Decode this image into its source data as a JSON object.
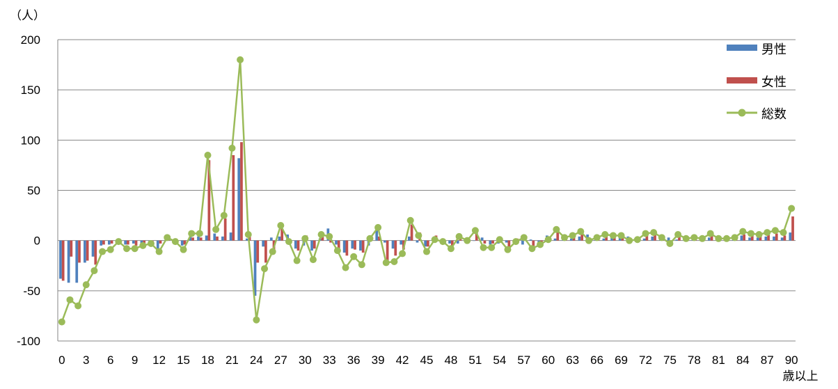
{
  "chart_data": {
    "type": "bar",
    "title": "",
    "xlabel": "歳以上",
    "ylabel": "（人）",
    "ylim": [
      -100,
      200
    ],
    "yticks": [
      -100,
      -50,
      0,
      50,
      100,
      150,
      200
    ],
    "x": [
      0,
      1,
      2,
      3,
      4,
      5,
      6,
      7,
      8,
      9,
      10,
      11,
      12,
      13,
      14,
      15,
      16,
      17,
      18,
      19,
      20,
      21,
      22,
      23,
      24,
      25,
      26,
      27,
      28,
      29,
      30,
      31,
      32,
      33,
      34,
      35,
      36,
      37,
      38,
      39,
      40,
      41,
      42,
      43,
      44,
      45,
      46,
      47,
      48,
      49,
      50,
      51,
      52,
      53,
      54,
      55,
      56,
      57,
      58,
      59,
      60,
      61,
      62,
      63,
      64,
      65,
      66,
      67,
      68,
      69,
      70,
      71,
      72,
      73,
      74,
      75,
      76,
      77,
      78,
      79,
      80,
      81,
      82,
      83,
      84,
      85,
      86,
      87,
      88,
      89,
      90
    ],
    "xtick_labels": [
      "0",
      "3",
      "6",
      "9",
      "12",
      "15",
      "18",
      "21",
      "24",
      "27",
      "30",
      "33",
      "36",
      "39",
      "42",
      "45",
      "48",
      "51",
      "54",
      "57",
      "60",
      "63",
      "66",
      "69",
      "72",
      "75",
      "78",
      "81",
      "84",
      "87",
      "90"
    ],
    "grid": true,
    "legend_position": "top-right",
    "colors": {
      "male": "#4f81bd",
      "female": "#c0504d",
      "total": "#9bbb59",
      "grid": "#868686"
    },
    "series": [
      {
        "name": "男性",
        "type": "bar",
        "values": [
          -38,
          -42,
          -42,
          -22,
          -16,
          -5,
          -4,
          0,
          -4,
          -3,
          -3,
          -1,
          -8,
          1,
          -3,
          -5,
          4,
          4,
          5,
          7,
          4,
          8,
          82,
          2,
          -55,
          -6,
          3,
          4,
          6,
          -8,
          -5,
          -10,
          2,
          12,
          -4,
          -12,
          -8,
          -10,
          -5,
          10,
          -2,
          -8,
          -4,
          4,
          -2,
          -6,
          2,
          0,
          -3,
          -3,
          2,
          0,
          3,
          -4,
          -3,
          -2,
          -3,
          -4,
          1,
          -4,
          5,
          2,
          5,
          2,
          4,
          6,
          1,
          2,
          4,
          3,
          4,
          1,
          2,
          4,
          5,
          3,
          1,
          3,
          2,
          2,
          3,
          4,
          3,
          2,
          5,
          3,
          3,
          4,
          4,
          3,
          8
        ]
      },
      {
        "name": "女性",
        "type": "bar",
        "values": [
          -40,
          -16,
          -22,
          -20,
          -24,
          -4,
          -3,
          -2,
          -4,
          -5,
          -3,
          -1,
          -3,
          2,
          -1,
          -4,
          3,
          3,
          80,
          4,
          22,
          85,
          98,
          6,
          -22,
          -22,
          -12,
          12,
          -3,
          -10,
          5,
          -8,
          4,
          -2,
          -8,
          -15,
          -9,
          -12,
          5,
          4,
          -20,
          -15,
          -9,
          16,
          8,
          -6,
          5,
          -3,
          -5,
          5,
          2,
          12,
          -3,
          -3,
          3,
          -7,
          2,
          5,
          -8,
          -4,
          2,
          9,
          3,
          5,
          8,
          -2,
          3,
          6,
          4,
          3,
          1,
          2,
          6,
          6,
          3,
          -2,
          6,
          2,
          3,
          2,
          5,
          2,
          2,
          3,
          6,
          5,
          5,
          6,
          7,
          5,
          24
        ]
      },
      {
        "name": "総数",
        "type": "line",
        "values": [
          -81,
          -59,
          -65,
          -44,
          -30,
          -11,
          -9,
          -1,
          -8,
          -8,
          -5,
          -3,
          -11,
          3,
          -1,
          -9,
          7,
          7,
          85,
          11,
          25,
          92,
          180,
          6,
          -79,
          -28,
          -11,
          15,
          -1,
          -20,
          2,
          -19,
          6,
          4,
          -10,
          -27,
          -16,
          -24,
          2,
          13,
          -22,
          -21,
          -13,
          20,
          5,
          -11,
          1,
          -1,
          -8,
          4,
          0,
          10,
          -7,
          -7,
          1,
          -9,
          -1,
          3,
          -8,
          -4,
          1,
          11,
          3,
          5,
          9,
          0,
          3,
          6,
          5,
          5,
          0,
          1,
          7,
          8,
          3,
          -3,
          6,
          2,
          3,
          2,
          7,
          2,
          2,
          3,
          9,
          7,
          6,
          8,
          10,
          8,
          32
        ]
      }
    ]
  }
}
